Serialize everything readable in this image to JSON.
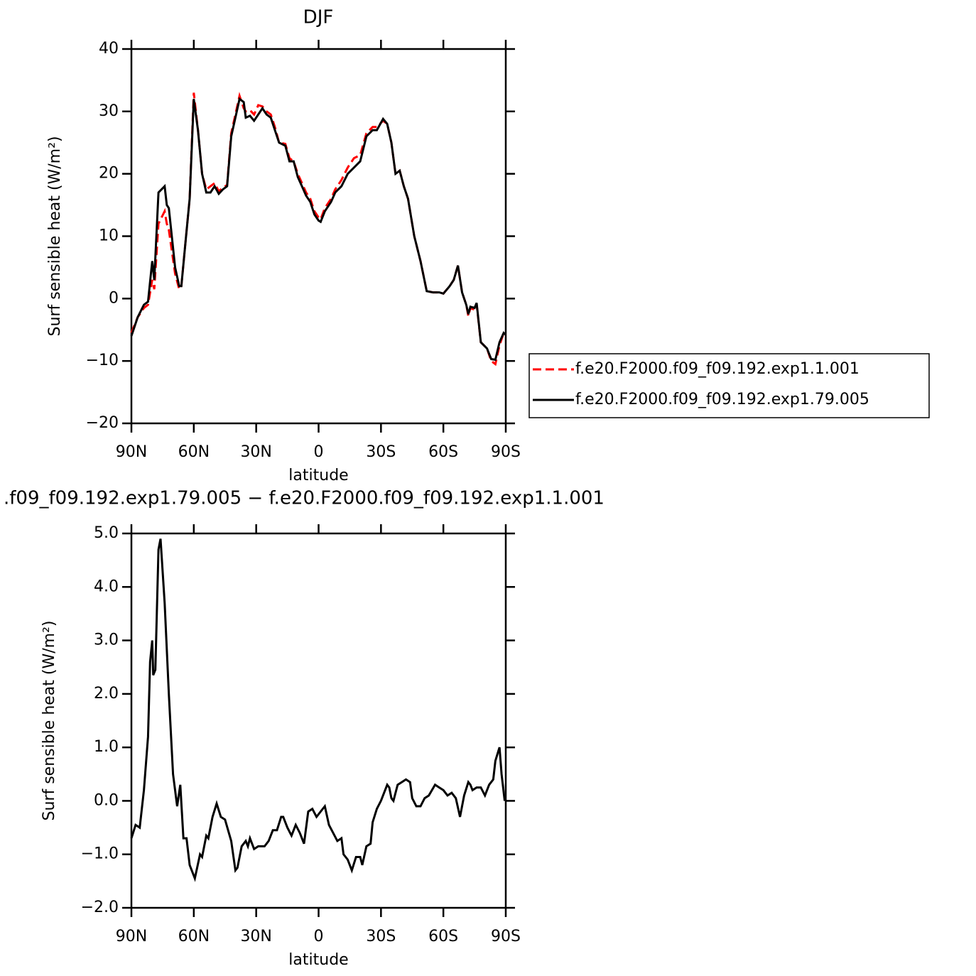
{
  "chart_data": [
    {
      "type": "line",
      "title": "DJF",
      "xlabel": "latitude",
      "ylabel": "Surf sensible heat (W/m²)",
      "xlim": [
        90,
        -90
      ],
      "ylim": [
        -20,
        40
      ],
      "xticks": [
        {
          "value": 90,
          "label": "90N"
        },
        {
          "value": 60,
          "label": "60N"
        },
        {
          "value": 30,
          "label": "30N"
        },
        0,
        {
          "value": -30,
          "label": "30S"
        },
        {
          "value": -60,
          "label": "60S"
        },
        {
          "value": -90,
          "label": "90S"
        }
      ],
      "yticks": [
        {
          "value": -20,
          "label": "−20"
        },
        {
          "value": -10,
          "label": "−10"
        },
        0,
        10,
        20,
        30,
        40
      ],
      "legend": "outside right",
      "x": [
        90,
        87,
        84,
        82,
        80,
        79,
        77,
        74,
        73,
        72,
        69,
        67,
        66,
        64,
        62,
        60,
        58,
        56,
        54,
        52,
        50,
        48,
        46,
        44,
        42,
        40,
        38,
        36,
        35,
        33,
        31,
        29,
        27,
        25,
        23,
        21,
        19,
        16,
        14,
        12,
        10,
        8,
        6,
        4,
        2,
        0,
        -1,
        -3,
        -6,
        -8,
        -11,
        -14,
        -17,
        -20,
        -23,
        -26,
        -28,
        -31,
        -33,
        -35,
        -37,
        -39,
        -41,
        -43,
        -46,
        -49,
        -52,
        -55,
        -58,
        -60,
        -63,
        -65,
        -67,
        -69,
        -71,
        -72,
        -73,
        -75,
        -76,
        -78,
        -81,
        -83,
        -85,
        -87,
        -89,
        -90
      ],
      "series": [
        {
          "name": "f.e20.F2000.f09_f09.192.exp1.1.001",
          "color": "#ff0000",
          "dash": true,
          "values": [
            -5.5,
            -3,
            -1.5,
            -1,
            3,
            1.5,
            12,
            14,
            12,
            11,
            4,
            1.5,
            2,
            9,
            16,
            33,
            27,
            20,
            17.5,
            18,
            18.5,
            17.2,
            17.8,
            18.2,
            26.5,
            29.5,
            32.5,
            30.5,
            30,
            30.2,
            29.5,
            31,
            30.8,
            30,
            29.5,
            27.5,
            25,
            24.8,
            22.5,
            22,
            20,
            18.5,
            17,
            16,
            14,
            13,
            12.7,
            14.5,
            16,
            17.5,
            19,
            21,
            22.5,
            23,
            26.5,
            27.5,
            27.5,
            28.5,
            28,
            25,
            20,
            20.5,
            18,
            16,
            10,
            6,
            1.2,
            1,
            1,
            0.8,
            2,
            3,
            5.3,
            1,
            -1,
            -2.8,
            -1.5,
            -1.8,
            -0.9,
            -7,
            -8,
            -10,
            -10.5,
            -7.5,
            -5.5,
            -5.8
          ]
        },
        {
          "name": "f.e20.F2000.f09_f09.192.exp1.79.005",
          "color": "#000000",
          "dash": false,
          "values": [
            -6,
            -3,
            -1,
            -0.5,
            6,
            3,
            17,
            18,
            15,
            14.5,
            5,
            2,
            2,
            9,
            16,
            32,
            27,
            20,
            17,
            17,
            18,
            16.8,
            17.5,
            18,
            26,
            29,
            32,
            31.5,
            29,
            29.3,
            28.5,
            29.5,
            30.5,
            29.5,
            29,
            27,
            25,
            24.5,
            22,
            22,
            19.5,
            18,
            16.5,
            15.5,
            13.5,
            12.5,
            12.3,
            14,
            15.5,
            17,
            18,
            20,
            21,
            22,
            26,
            27,
            27,
            28.8,
            28,
            25,
            20,
            20.5,
            18,
            16,
            10,
            6,
            1.2,
            1,
            1,
            0.8,
            2,
            3,
            5.3,
            1,
            -1,
            -2.5,
            -1.3,
            -1.5,
            -0.7,
            -7,
            -8,
            -9.7,
            -9.8,
            -7,
            -5.5,
            -5.8
          ]
        }
      ]
    },
    {
      "type": "line",
      "title": ".f09_f09.192.exp1.79.005 − f.e20.F2000.f09_f09.192.exp1.1.001",
      "xlabel": "latitude",
      "ylabel": "Surf sensible heat (W/m²)",
      "xlim": [
        90,
        -90
      ],
      "ylim": [
        -2,
        5
      ],
      "xticks": [
        {
          "value": 90,
          "label": "90N"
        },
        {
          "value": 60,
          "label": "60N"
        },
        {
          "value": 30,
          "label": "30N"
        },
        0,
        {
          "value": -30,
          "label": "30S"
        },
        {
          "value": -60,
          "label": "60S"
        },
        {
          "value": -90,
          "label": "90S"
        }
      ],
      "yticks": [
        {
          "value": -2,
          "label": "−2.0"
        },
        {
          "value": -1,
          "label": "−1.0"
        },
        {
          "value": 0,
          "label": "0.0"
        },
        {
          "value": 1,
          "label": "1.0"
        },
        {
          "value": 2,
          "label": "2.0"
        },
        {
          "value": 3,
          "label": "3.0"
        },
        {
          "value": 4,
          "label": "4.0"
        },
        {
          "value": 5,
          "label": "5.0"
        }
      ],
      "color": "#000000",
      "x": [
        90,
        88,
        86,
        84,
        82,
        81,
        80,
        79.5,
        78.5,
        77,
        76,
        74,
        72,
        70,
        68,
        66.5,
        65,
        63.5,
        62,
        59.5,
        57,
        56,
        54,
        53,
        51,
        49,
        47,
        45,
        42,
        40,
        39,
        37,
        35,
        34,
        33,
        31,
        29,
        26,
        24,
        22,
        20,
        18,
        17,
        15,
        13,
        11,
        9,
        7,
        5,
        3,
        1,
        -1,
        -3,
        -5,
        -7,
        -9,
        -11,
        -12,
        -14,
        -16,
        -18,
        -20,
        -21,
        -23,
        -25,
        -26,
        -28,
        -30,
        -33,
        -34,
        -35,
        -36,
        -38,
        -40,
        -42,
        -44,
        -45,
        -47,
        -49,
        -51,
        -53,
        -56,
        -58,
        -60,
        -62,
        -64,
        -66,
        -68,
        -70,
        -72,
        -73,
        -74,
        -76,
        -78,
        -80,
        -82,
        -84,
        -85,
        -87,
        -88,
        -89.5
      ],
      "values": [
        -0.7,
        -0.45,
        -0.5,
        0.2,
        1.2,
        2.6,
        3.0,
        2.35,
        2.45,
        4.7,
        4.9,
        3.7,
        2.0,
        0.5,
        -0.1,
        0.3,
        -0.7,
        -0.7,
        -1.2,
        -1.45,
        -1.0,
        -1.05,
        -0.65,
        -0.7,
        -0.3,
        -0.05,
        -0.3,
        -0.35,
        -0.75,
        -1.3,
        -1.25,
        -0.85,
        -0.75,
        -0.85,
        -0.7,
        -0.9,
        -0.85,
        -0.85,
        -0.75,
        -0.55,
        -0.55,
        -0.3,
        -0.3,
        -0.5,
        -0.65,
        -0.45,
        -0.6,
        -0.8,
        -0.2,
        -0.15,
        -0.3,
        -0.2,
        -0.1,
        -0.45,
        -0.6,
        -0.75,
        -0.7,
        -1.0,
        -1.1,
        -1.3,
        -1.05,
        -1.05,
        -1.2,
        -0.85,
        -0.8,
        -0.4,
        -0.15,
        0.0,
        0.3,
        0.25,
        0.05,
        0.0,
        0.3,
        0.35,
        0.4,
        0.35,
        0.05,
        -0.1,
        -0.1,
        0.05,
        0.1,
        0.3,
        0.25,
        0.2,
        0.1,
        0.15,
        0.05,
        -0.3,
        0.1,
        0.35,
        0.3,
        0.2,
        0.25,
        0.25,
        0.1,
        0.3,
        0.4,
        0.75,
        1.0,
        0.5,
        0.0
      ]
    }
  ]
}
